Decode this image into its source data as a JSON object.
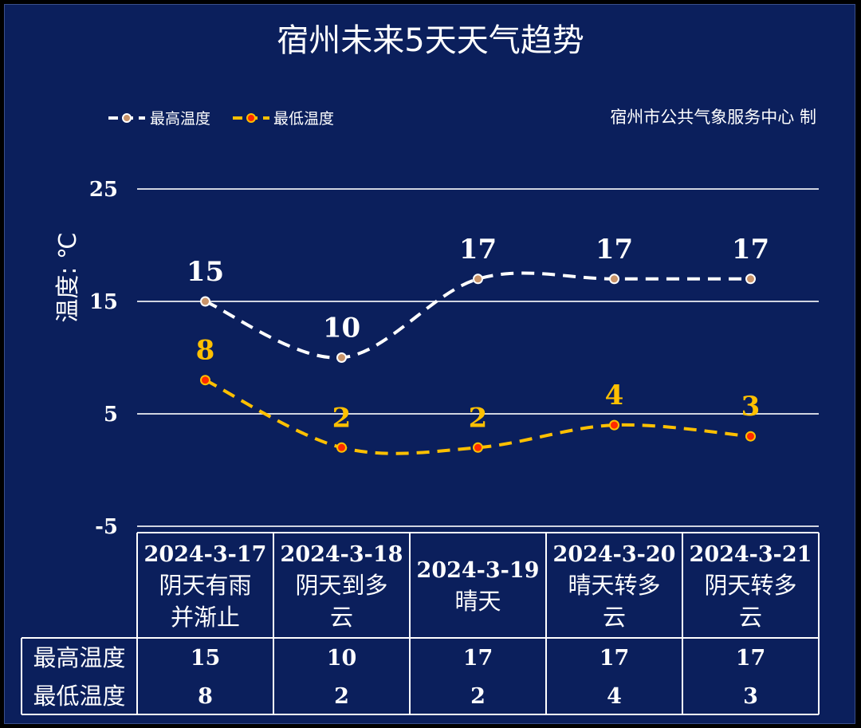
{
  "chart_data": {
    "type": "line",
    "title": "宿州未来5天天气趋势",
    "source": "宿州市公共气象服务中心  制",
    "ylabel": "温度: ℃",
    "ylim": [
      -5,
      25
    ],
    "yticks": [
      "25",
      "15",
      "5",
      "-5"
    ],
    "categories": [
      "2024-3-17",
      "2024-3-18",
      "2024-3-19",
      "2024-3-20",
      "2024-3-21"
    ],
    "weather": [
      "阴天有雨并渐止",
      "阴天到多云",
      "晴天",
      "晴天转多云",
      "阴天转多云"
    ],
    "series": [
      {
        "name": "最高温度",
        "values": [
          15,
          10,
          17,
          17,
          17
        ],
        "color": "#ffffff"
      },
      {
        "name": "最低温度",
        "values": [
          8,
          2,
          2,
          4,
          3
        ],
        "color": "#ffc000"
      }
    ],
    "grid": true,
    "legend_position": "top-left"
  },
  "table": {
    "row_high_label": "最高温度",
    "row_low_label": "最低温度"
  },
  "colors": {
    "background": "#0b1f5c",
    "high": "#ffffff",
    "low": "#ffc000",
    "high_marker": "#c9946a",
    "low_marker": "#ff2a00"
  }
}
